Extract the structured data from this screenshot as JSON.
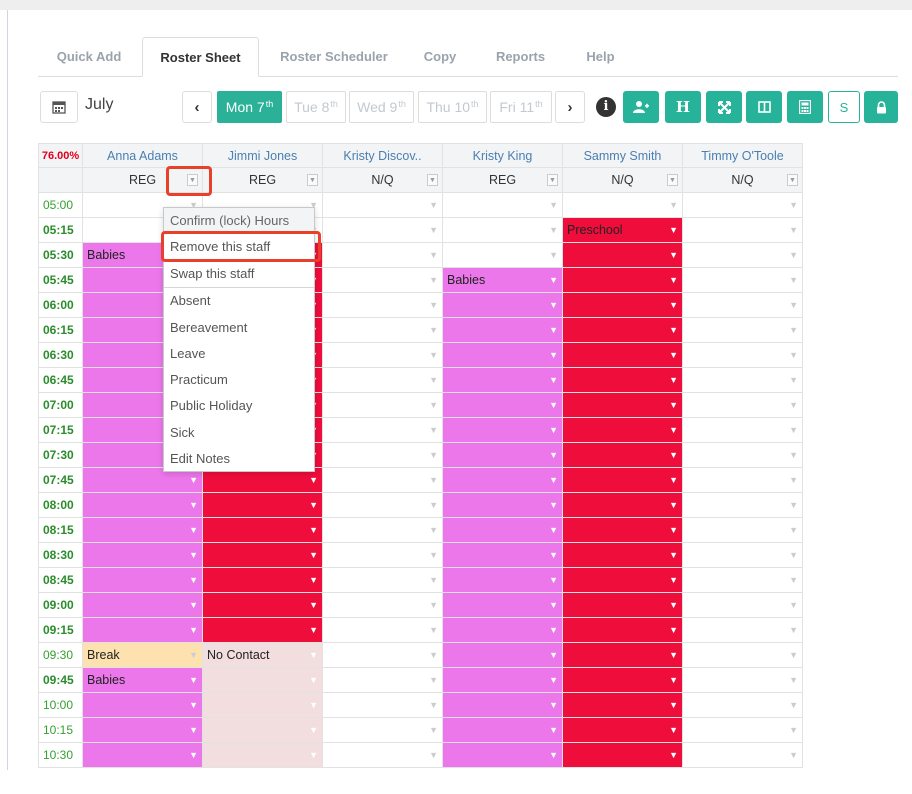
{
  "tabs": [
    {
      "label": "Quick Add",
      "active": false
    },
    {
      "label": "Roster Sheet",
      "active": true
    },
    {
      "label": "Roster Scheduler",
      "active": false
    },
    {
      "label": "Copy",
      "active": false
    },
    {
      "label": "Reports",
      "active": false
    },
    {
      "label": "Help",
      "active": false
    }
  ],
  "toolbar": {
    "month": "July",
    "days": [
      {
        "label": "Mon 7",
        "sup": "th",
        "active": true
      },
      {
        "label": "Tue 8",
        "sup": "th",
        "active": false
      },
      {
        "label": "Wed 9",
        "sup": "th",
        "active": false
      },
      {
        "label": "Thu 10",
        "sup": "th",
        "active": false
      },
      {
        "label": "Fri 11",
        "sup": "th",
        "active": false
      }
    ],
    "prev_icon": "chevron-left-icon",
    "next_icon": "chevron-right-icon",
    "info_icon": "info-icon",
    "actions": [
      {
        "icon": "add-user-icon",
        "label": ""
      },
      {
        "icon": "holiday-icon",
        "label": "H"
      },
      {
        "icon": "expand-icon",
        "label": ""
      },
      {
        "icon": "columns-icon",
        "label": ""
      },
      {
        "icon": "calculator-icon",
        "label": ""
      },
      {
        "icon": "s-icon",
        "label": "S"
      },
      {
        "icon": "lock-icon",
        "label": ""
      }
    ],
    "accent_color": "#26b399"
  },
  "roster": {
    "percent": "76.00%",
    "staff": [
      {
        "name": "Anna Adams",
        "type": "REG"
      },
      {
        "name": "Jimmi Jones",
        "type": "REG"
      },
      {
        "name": "Kristy Discov..",
        "type": "N/Q"
      },
      {
        "name": "Kristy King",
        "type": "REG"
      },
      {
        "name": "Sammy Smith",
        "type": "N/Q"
      },
      {
        "name": "Timmy O'Toole",
        "type": "N/Q"
      }
    ],
    "times": [
      "05:00",
      "05:15",
      "05:30",
      "05:45",
      "06:00",
      "06:15",
      "06:30",
      "06:45",
      "07:00",
      "07:15",
      "07:30",
      "07:45",
      "08:00",
      "08:15",
      "08:30",
      "08:45",
      "09:00",
      "09:15",
      "09:30",
      "09:45",
      "10:00",
      "10:15",
      "10:30"
    ],
    "bold_times": [
      "05:15",
      "05:30",
      "05:45",
      "06:00",
      "06:15",
      "06:30",
      "06:45",
      "07:00",
      "07:15",
      "07:30",
      "07:45",
      "08:00",
      "08:15",
      "08:30",
      "08:45",
      "09:00",
      "09:15",
      "09:45"
    ],
    "colors": {
      "pink": "#ec77eb",
      "red": "#ef0d3c",
      "break": "#fde2b0",
      "nocontact": "#f3dedf"
    },
    "labels": {
      "anna_0530": "Babies",
      "anna_0930": "Break",
      "anna_0945": "Babies",
      "jimmi_0930": "No Contact",
      "kristyk_0545": "Babies",
      "sammy_0515": "Preschool"
    }
  },
  "menu": {
    "items": [
      "Confirm (lock) Hours",
      "Remove this staff",
      "Swap this staff",
      "Absent",
      "Bereavement",
      "Leave",
      "Practicum",
      "Public Holiday",
      "Sick",
      "Edit Notes"
    ]
  }
}
